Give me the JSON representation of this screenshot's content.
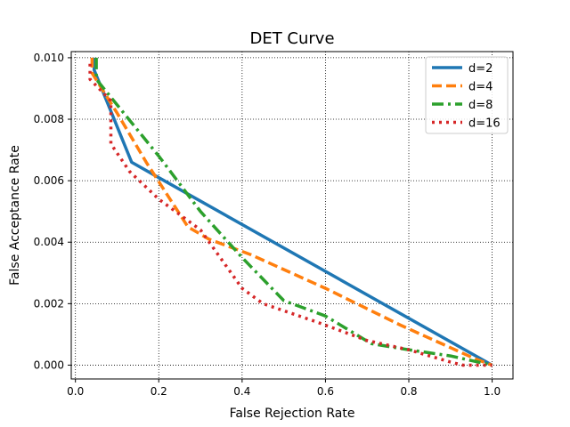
{
  "chart_data": {
    "type": "line",
    "title": "DET Curve",
    "xlabel": "False  Rejection  Rate",
    "ylabel": "False  Acceptance  Rate",
    "xlim": [
      -0.01,
      1.05
    ],
    "ylim": [
      -0.00045,
      0.0102
    ],
    "xticks": [
      0.0,
      0.2,
      0.4,
      0.6,
      0.8,
      1.0
    ],
    "xtick_labels": [
      "0.0",
      "0.2",
      "0.4",
      "0.6",
      "0.8",
      "1.0"
    ],
    "yticks": [
      0.0,
      0.002,
      0.004,
      0.006,
      0.008,
      0.01
    ],
    "ytick_labels": [
      "0.000",
      "0.002",
      "0.004",
      "0.006",
      "0.008",
      "0.010"
    ],
    "grid": true,
    "legend_position": "top-right",
    "series": [
      {
        "name": "d=2",
        "color": "#1f77b4",
        "linestyle": "solid",
        "points": [
          [
            0.045,
            0.01
          ],
          [
            0.045,
            0.0096
          ],
          [
            0.135,
            0.0066
          ],
          [
            0.2,
            0.0061
          ],
          [
            1.0,
            0.0
          ]
        ]
      },
      {
        "name": "d=4",
        "color": "#ff7f0e",
        "linestyle": "dashed",
        "points": [
          [
            0.04,
            0.01
          ],
          [
            0.04,
            0.0095
          ],
          [
            0.1,
            0.0082
          ],
          [
            0.17,
            0.0066
          ],
          [
            0.27,
            0.0045
          ],
          [
            0.32,
            0.0041
          ],
          [
            0.42,
            0.0036
          ],
          [
            0.6,
            0.0025
          ],
          [
            0.78,
            0.0013
          ],
          [
            0.96,
            0.0002
          ],
          [
            1.0,
            0.0
          ]
        ]
      },
      {
        "name": "d=8",
        "color": "#2ca02c",
        "linestyle": "dashdot",
        "points": [
          [
            0.05,
            0.01
          ],
          [
            0.05,
            0.0093
          ],
          [
            0.08,
            0.0088
          ],
          [
            0.11,
            0.0083
          ],
          [
            0.2,
            0.0068
          ],
          [
            0.3,
            0.005
          ],
          [
            0.4,
            0.0035
          ],
          [
            0.5,
            0.0021
          ],
          [
            0.6,
            0.0016
          ],
          [
            0.71,
            0.0007
          ],
          [
            0.8,
            0.0005
          ],
          [
            0.9,
            0.0003
          ],
          [
            1.0,
            0.0
          ]
        ]
      },
      {
        "name": "d=16",
        "color": "#d62728",
        "linestyle": "dotted",
        "points": [
          [
            0.035,
            0.0098
          ],
          [
            0.035,
            0.0093
          ],
          [
            0.085,
            0.0086
          ],
          [
            0.085,
            0.0072
          ],
          [
            0.13,
            0.0063
          ],
          [
            0.2,
            0.0054
          ],
          [
            0.3,
            0.0044
          ],
          [
            0.4,
            0.0025
          ],
          [
            0.45,
            0.002
          ],
          [
            0.58,
            0.0014
          ],
          [
            0.7,
            0.0008
          ],
          [
            0.8,
            0.0005
          ],
          [
            0.9,
            0.0001
          ],
          [
            0.93,
            0.0
          ],
          [
            1.0,
            0.0
          ]
        ]
      }
    ]
  }
}
